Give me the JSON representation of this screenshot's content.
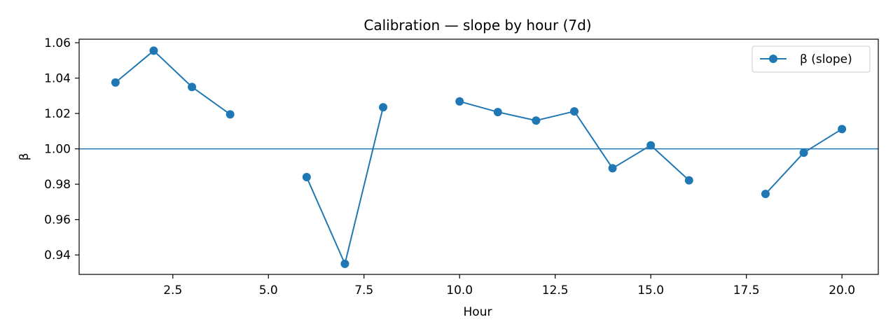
{
  "chart_data": {
    "type": "line",
    "title": "Calibration — slope by hour (7d)",
    "xlabel": "Hour",
    "ylabel": "β",
    "xlim": [
      0.05,
      20.95
    ],
    "ylim": [
      0.929,
      1.062
    ],
    "xticks": [
      2.5,
      5.0,
      7.5,
      10.0,
      12.5,
      15.0,
      17.5,
      20.0
    ],
    "xtick_labels": [
      "2.5",
      "5.0",
      "7.5",
      "10.0",
      "12.5",
      "15.0",
      "17.5",
      "20.0"
    ],
    "yticks": [
      0.94,
      0.96,
      0.98,
      1.0,
      1.02,
      1.04,
      1.06
    ],
    "ytick_labels": [
      "0.94",
      "0.96",
      "0.98",
      "1.00",
      "1.02",
      "1.04",
      "1.06"
    ],
    "reference_line": {
      "y": 1.0,
      "color": "#1f77b4"
    },
    "legend": {
      "position": "top-right",
      "entries": [
        "β (slope)"
      ]
    },
    "grid": false,
    "series": [
      {
        "name": "β (slope)",
        "color": "#1f77b4",
        "marker": "circle",
        "x": [
          1,
          2,
          3,
          4,
          5,
          6,
          7,
          8,
          9,
          10,
          11,
          12,
          13,
          14,
          15,
          16,
          17,
          18,
          19,
          20
        ],
        "values": [
          1.0375,
          1.0555,
          1.035,
          1.0195,
          null,
          0.984,
          0.935,
          1.0235,
          null,
          1.0268,
          1.0208,
          1.016,
          1.0212,
          0.989,
          1.002,
          0.9822,
          null,
          0.9745,
          0.9978,
          1.0112
        ]
      }
    ]
  }
}
